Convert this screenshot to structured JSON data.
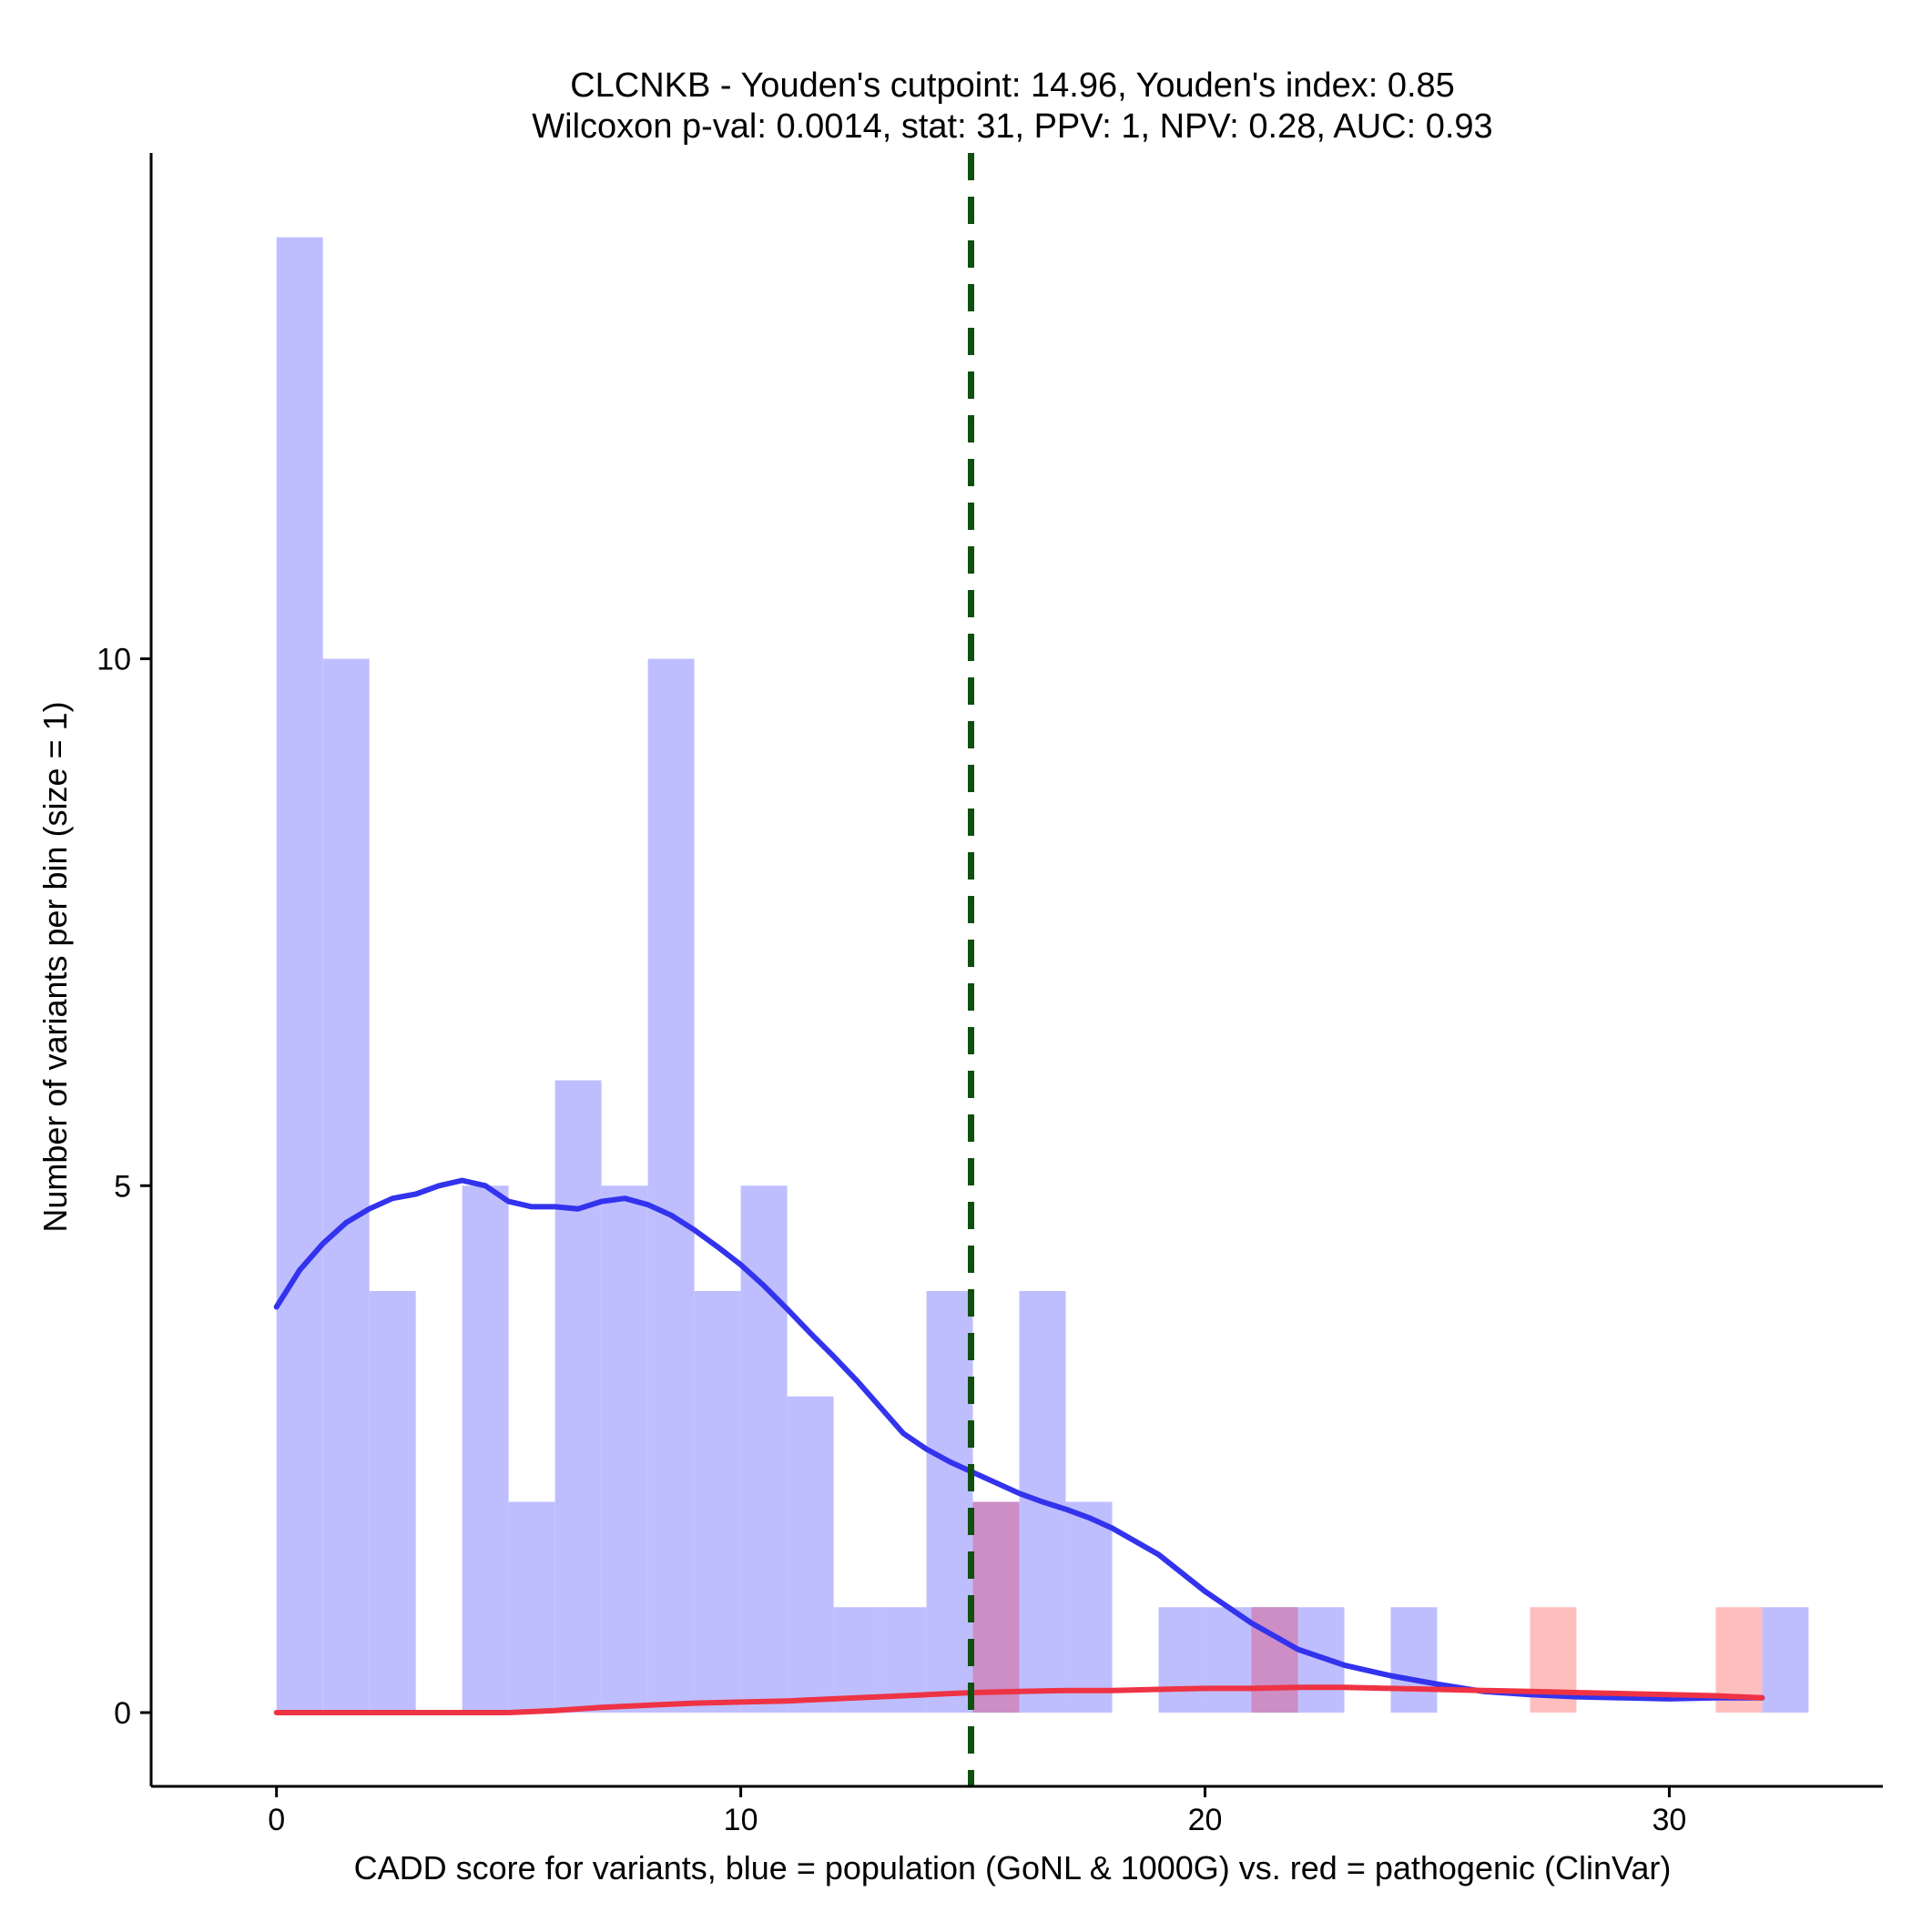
{
  "chart_data": {
    "type": "bar",
    "title": "CLCNKB - Youden's cutpoint: 14.96, Youden's index: 0.85",
    "subtitle": "Wilcoxon p-val: 0.0014, stat: 31, PPV: 1, NPV: 0.28, AUC: 0.93",
    "xlabel": "CADD score for variants, blue = population (GoNL & 1000G) vs. red = pathogenic (ClinVar)",
    "ylabel": "Number of variants per bin (size = 1)",
    "xlim": [
      -2.7,
      34.6
    ],
    "ylim": [
      -0.7,
      14.8
    ],
    "x_ticks": [
      0,
      10,
      20,
      30
    ],
    "y_ticks": [
      0,
      5,
      10
    ],
    "bin_width": 1,
    "grid": false,
    "cutpoint": 14.96,
    "colors": {
      "population": "#bebeff",
      "pathogenic": "#ffbebe",
      "overlap": "#cc8ec4",
      "population_density": "#3333ee",
      "pathogenic_density": "#ee3344",
      "cutpoint_line": "#0f4f0f"
    },
    "series": [
      {
        "name": "population",
        "bins": [
          {
            "start": 0,
            "count": 14
          },
          {
            "start": 1,
            "count": 10
          },
          {
            "start": 2,
            "count": 4
          },
          {
            "start": 3,
            "count": 0
          },
          {
            "start": 4,
            "count": 5
          },
          {
            "start": 5,
            "count": 2
          },
          {
            "start": 6,
            "count": 6
          },
          {
            "start": 7,
            "count": 5
          },
          {
            "start": 8,
            "count": 10
          },
          {
            "start": 9,
            "count": 4
          },
          {
            "start": 10,
            "count": 5
          },
          {
            "start": 11,
            "count": 3
          },
          {
            "start": 12,
            "count": 1
          },
          {
            "start": 13,
            "count": 1
          },
          {
            "start": 14,
            "count": 4
          },
          {
            "start": 15,
            "count": 2
          },
          {
            "start": 16,
            "count": 4
          },
          {
            "start": 17,
            "count": 2
          },
          {
            "start": 18,
            "count": 0
          },
          {
            "start": 19,
            "count": 1
          },
          {
            "start": 20,
            "count": 1
          },
          {
            "start": 21,
            "count": 1
          },
          {
            "start": 22,
            "count": 1
          },
          {
            "start": 23,
            "count": 0
          },
          {
            "start": 24,
            "count": 1
          },
          {
            "start": 25,
            "count": 0
          },
          {
            "start": 26,
            "count": 0
          },
          {
            "start": 27,
            "count": 0
          },
          {
            "start": 28,
            "count": 0
          },
          {
            "start": 29,
            "count": 0
          },
          {
            "start": 30,
            "count": 0
          },
          {
            "start": 31,
            "count": 0
          },
          {
            "start": 32,
            "count": 1
          }
        ]
      },
      {
        "name": "pathogenic",
        "bins": [
          {
            "start": 15,
            "count": 2
          },
          {
            "start": 21,
            "count": 1
          },
          {
            "start": 27,
            "count": 1
          },
          {
            "start": 31,
            "count": 1
          }
        ]
      }
    ],
    "density_curves": [
      {
        "name": "population",
        "x": [
          0,
          0.5,
          1,
          1.5,
          2,
          2.5,
          3,
          3.5,
          4,
          4.5,
          5,
          5.5,
          6,
          6.5,
          7,
          7.5,
          8,
          8.5,
          9,
          9.5,
          10,
          10.5,
          11,
          11.5,
          12,
          12.5,
          13,
          13.5,
          14,
          14.5,
          15,
          15.5,
          16,
          16.5,
          17,
          17.5,
          18,
          19,
          20,
          21,
          22,
          23,
          24,
          25,
          26,
          27,
          28,
          29,
          30,
          31,
          32
        ],
        "y": [
          3.85,
          4.2,
          4.45,
          4.65,
          4.78,
          4.88,
          4.92,
          5.0,
          5.05,
          5.0,
          4.85,
          4.8,
          4.8,
          4.78,
          4.85,
          4.88,
          4.82,
          4.72,
          4.58,
          4.42,
          4.25,
          4.05,
          3.83,
          3.6,
          3.38,
          3.15,
          2.9,
          2.65,
          2.5,
          2.38,
          2.28,
          2.18,
          2.08,
          2.0,
          1.93,
          1.85,
          1.75,
          1.5,
          1.15,
          0.85,
          0.6,
          0.45,
          0.35,
          0.27,
          0.2,
          0.17,
          0.15,
          0.14,
          0.13,
          0.14,
          0.14
        ]
      },
      {
        "name": "pathogenic",
        "x": [
          0,
          1,
          2,
          3,
          4,
          5,
          6,
          7,
          8,
          9,
          10,
          11,
          12,
          13,
          14,
          15,
          16,
          17,
          18,
          19,
          20,
          21,
          22,
          23,
          24,
          25,
          26,
          27,
          28,
          29,
          30,
          31,
          32
        ],
        "y": [
          0,
          0,
          0,
          0,
          0,
          0,
          0.02,
          0.05,
          0.07,
          0.09,
          0.1,
          0.11,
          0.13,
          0.15,
          0.17,
          0.19,
          0.2,
          0.21,
          0.21,
          0.22,
          0.23,
          0.23,
          0.24,
          0.24,
          0.23,
          0.22,
          0.21,
          0.2,
          0.19,
          0.18,
          0.17,
          0.16,
          0.14
        ]
      }
    ]
  }
}
